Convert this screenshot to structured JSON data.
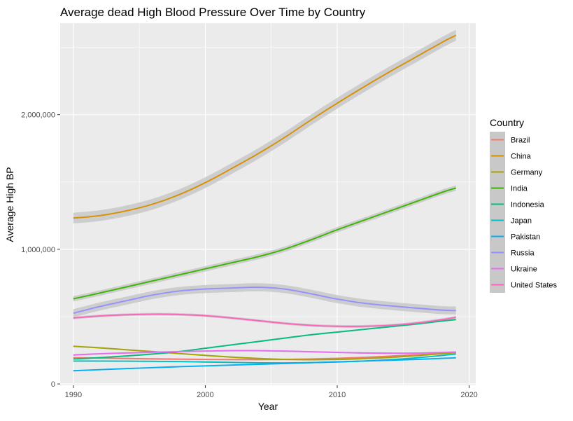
{
  "chart_data": {
    "type": "line",
    "title": "Average dead High Blood Pressure Over Time by Country",
    "xlabel": "Year",
    "ylabel": "Average High BP",
    "xlim": [
      1989,
      2020.5
    ],
    "ylim": [
      -10000,
      2680000
    ],
    "x_ticks": [
      1990,
      2000,
      2010,
      2020
    ],
    "x_tick_labels": [
      "1990",
      "2000",
      "2010",
      "2020"
    ],
    "y_ticks": [
      0,
      1000000,
      2000000
    ],
    "y_tick_labels": [
      "0",
      "1,000,000",
      "2,000,000"
    ],
    "y_minor_ticks": [
      500000,
      1500000,
      2500000
    ],
    "x_minor_ticks": [
      1995,
      2005,
      2015
    ],
    "grid": true,
    "smoothed": true,
    "confidence_band_color": "#c8c8c8",
    "legend_title": "Country",
    "legend_position": "right",
    "x": [
      1990,
      1992,
      1994,
      1996,
      1998,
      2000,
      2002,
      2004,
      2006,
      2008,
      2010,
      2012,
      2014,
      2016,
      2018,
      2019
    ],
    "series": [
      {
        "name": "Brazil",
        "color": "#F8766D",
        "band": 6000,
        "values": [
          195000,
          192000,
          189000,
          186000,
          184000,
          182000,
          181000,
          181000,
          182000,
          185000,
          190000,
          197000,
          206000,
          216000,
          228000,
          234000
        ]
      },
      {
        "name": "China",
        "color": "#D89000",
        "band": 40000,
        "values": [
          1232000,
          1250000,
          1285000,
          1335000,
          1405000,
          1495000,
          1600000,
          1710000,
          1830000,
          1960000,
          2085000,
          2205000,
          2320000,
          2430000,
          2540000,
          2590000
        ]
      },
      {
        "name": "Germany",
        "color": "#A3A500",
        "band": 6000,
        "values": [
          280000,
          268000,
          254000,
          240000,
          226000,
          212000,
          199000,
          189000,
          182000,
          180000,
          182000,
          188000,
          197000,
          210000,
          225000,
          233000
        ]
      },
      {
        "name": "India",
        "color": "#39B600",
        "band": 20000,
        "values": [
          632000,
          675000,
          720000,
          765000,
          810000,
          855000,
          900000,
          945000,
          1000000,
          1070000,
          1145000,
          1215000,
          1285000,
          1355000,
          1425000,
          1455000
        ]
      },
      {
        "name": "Indonesia",
        "color": "#00BF7D",
        "band": 6000,
        "values": [
          185000,
          195000,
          208000,
          222000,
          240000,
          265000,
          290000,
          315000,
          340000,
          365000,
          385000,
          405000,
          425000,
          445000,
          468000,
          478000
        ]
      },
      {
        "name": "Japan",
        "color": "#00BFC4",
        "band": 5000,
        "values": [
          170000,
          170000,
          169000,
          168000,
          166000,
          163000,
          160000,
          157000,
          156000,
          158000,
          163000,
          170000,
          180000,
          194000,
          212000,
          222000
        ]
      },
      {
        "name": "Pakistan",
        "color": "#00B0F6",
        "band": 5000,
        "values": [
          98000,
          106000,
          114000,
          121000,
          128000,
          134000,
          140000,
          146000,
          152000,
          158000,
          164000,
          170000,
          176000,
          182000,
          190000,
          194000
        ]
      },
      {
        "name": "Russia",
        "color": "#9590FF",
        "band": 30000,
        "values": [
          525000,
          575000,
          618000,
          660000,
          690000,
          705000,
          712000,
          718000,
          705000,
          670000,
          630000,
          600000,
          580000,
          563000,
          548000,
          545000
        ]
      },
      {
        "name": "Ukraine",
        "color": "#E76BF3",
        "band": 6000,
        "values": [
          215000,
          224000,
          230000,
          235000,
          240000,
          244000,
          247000,
          247000,
          244000,
          239000,
          234000,
          230000,
          228000,
          229000,
          234000,
          237000
        ]
      },
      {
        "name": "United States",
        "color": "#FF62BC",
        "band": 10000,
        "values": [
          490000,
          505000,
          514000,
          518000,
          516000,
          507000,
          490000,
          470000,
          450000,
          435000,
          428000,
          428000,
          435000,
          452000,
          478000,
          495000
        ]
      }
    ]
  }
}
